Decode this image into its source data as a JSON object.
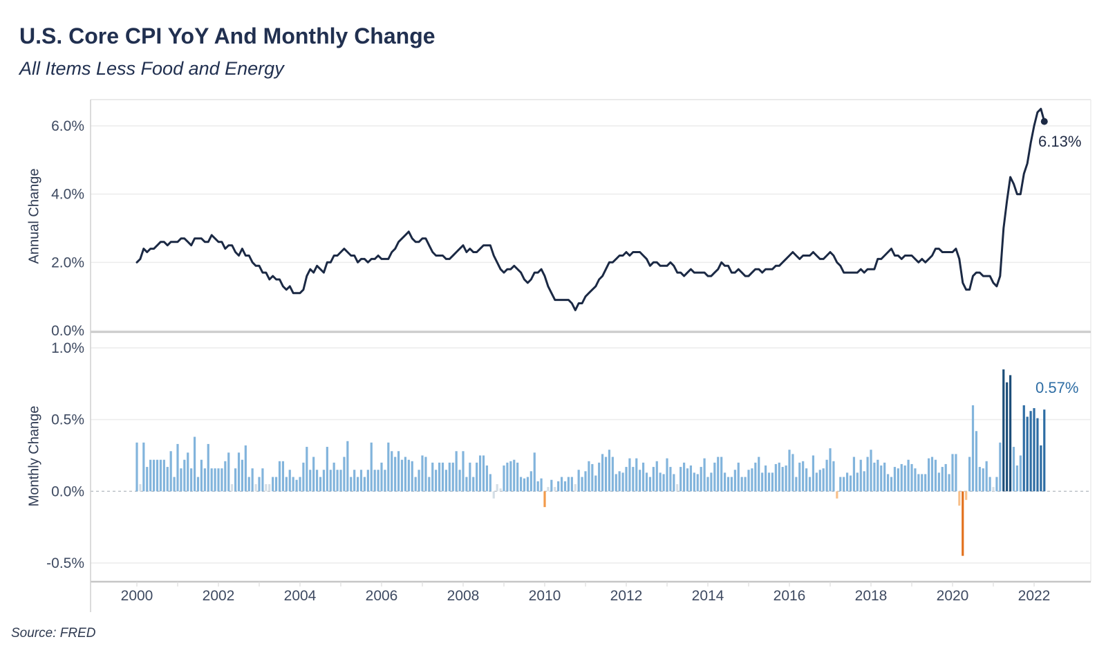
{
  "title": "U.S. Core CPI YoY And Monthly Change",
  "subtitle": "All Items Less Food and Energy",
  "source": "Source: FRED",
  "annotations": {
    "annual_latest": "6.13%",
    "monthly_latest": "0.57%"
  },
  "panels": {
    "annual": {
      "axis_title": "Annual Change",
      "ticks": [
        {
          "value": 6.0,
          "label": "6.0%"
        },
        {
          "value": 4.0,
          "label": "4.0%"
        },
        {
          "value": 2.0,
          "label": "2.0%"
        },
        {
          "value": 0.0,
          "label": "0.0%"
        }
      ],
      "ylim": [
        0.0,
        6.6
      ],
      "grid": true
    },
    "monthly": {
      "axis_title": "Monthly Change",
      "ticks": [
        {
          "value": 1.0,
          "label": "1.0%"
        },
        {
          "value": 0.5,
          "label": "0.5%"
        },
        {
          "value": 0.0,
          "label": "0.0%"
        },
        {
          "value": -0.5,
          "label": "-0.5%"
        }
      ],
      "ylim": [
        -0.63,
        1.05
      ],
      "grid": true,
      "zero_line_dashed": true
    }
  },
  "x_axis": {
    "tick_labels": [
      "2000",
      "2002",
      "2004",
      "2006",
      "2008",
      "2010",
      "2012",
      "2014",
      "2016",
      "2018",
      "2020",
      "2022"
    ],
    "tick_years": [
      2000,
      2002,
      2004,
      2006,
      2008,
      2010,
      2012,
      2014,
      2016,
      2018,
      2020,
      2022
    ],
    "minor_tick_every_year": true,
    "range_months": [
      "2000-01",
      "2022-04"
    ]
  },
  "colors": {
    "line": "#1b2944",
    "bar_default": "#82b4dc",
    "bar_pale": "#d4dee6",
    "bar_dark": "#1d4e79",
    "bar_medium": "#2e6da4",
    "bar_orange_dark": "#e2711d",
    "bar_orange_medium": "#f29a4a",
    "bar_orange_light": "#f8c08a",
    "gridline": "#ececec",
    "axis_line": "#c9c9c9",
    "zero_dash": "#b9bec4",
    "tick_text": "#3e4a61",
    "annotation_annual": "#1f2a44",
    "annotation_monthly": "#2e6da4"
  },
  "chart_data": [
    {
      "type": "line",
      "name": "Core CPI Year-over-Year % Change (Annual Change)",
      "panel": "annual",
      "unit": "percent",
      "x_start": "2000-01",
      "x_end": "2022-04",
      "end_marker": true,
      "end_value": 6.13,
      "values_by_year": {
        "2000": [
          2.0,
          2.1,
          2.4,
          2.3,
          2.4,
          2.4,
          2.5,
          2.6,
          2.6,
          2.5,
          2.6,
          2.6
        ],
        "2001": [
          2.6,
          2.7,
          2.7,
          2.6,
          2.5,
          2.7,
          2.7,
          2.7,
          2.6,
          2.6,
          2.8,
          2.7
        ],
        "2002": [
          2.6,
          2.6,
          2.4,
          2.5,
          2.5,
          2.3,
          2.2,
          2.4,
          2.2,
          2.2,
          2.0,
          1.9
        ],
        "2003": [
          1.9,
          1.7,
          1.7,
          1.5,
          1.6,
          1.5,
          1.5,
          1.3,
          1.2,
          1.3,
          1.1,
          1.1
        ],
        "2004": [
          1.1,
          1.2,
          1.6,
          1.8,
          1.7,
          1.9,
          1.8,
          1.7,
          2.0,
          2.0,
          2.2,
          2.2
        ],
        "2005": [
          2.3,
          2.4,
          2.3,
          2.2,
          2.2,
          2.0,
          2.1,
          2.1,
          2.0,
          2.1,
          2.1,
          2.2
        ],
        "2006": [
          2.1,
          2.1,
          2.1,
          2.3,
          2.4,
          2.6,
          2.7,
          2.8,
          2.9,
          2.7,
          2.6,
          2.6
        ],
        "2007": [
          2.7,
          2.7,
          2.5,
          2.3,
          2.2,
          2.2,
          2.2,
          2.1,
          2.1,
          2.2,
          2.3,
          2.4
        ],
        "2008": [
          2.5,
          2.3,
          2.4,
          2.3,
          2.3,
          2.4,
          2.5,
          2.5,
          2.5,
          2.2,
          2.0,
          1.8
        ],
        "2009": [
          1.7,
          1.8,
          1.8,
          1.9,
          1.8,
          1.7,
          1.5,
          1.4,
          1.5,
          1.7,
          1.7,
          1.8
        ],
        "2010": [
          1.6,
          1.3,
          1.1,
          0.9,
          0.9,
          0.9,
          0.9,
          0.9,
          0.8,
          0.6,
          0.8,
          0.8
        ],
        "2011": [
          1.0,
          1.1,
          1.2,
          1.3,
          1.5,
          1.6,
          1.8,
          2.0,
          2.0,
          2.1,
          2.2,
          2.2
        ],
        "2012": [
          2.3,
          2.2,
          2.3,
          2.3,
          2.3,
          2.2,
          2.1,
          1.9,
          2.0,
          2.0,
          1.9,
          1.9
        ],
        "2013": [
          1.9,
          2.0,
          1.9,
          1.7,
          1.7,
          1.6,
          1.7,
          1.8,
          1.7,
          1.7,
          1.7,
          1.7
        ],
        "2014": [
          1.6,
          1.6,
          1.7,
          1.8,
          2.0,
          1.9,
          1.9,
          1.7,
          1.7,
          1.8,
          1.7,
          1.6
        ],
        "2015": [
          1.6,
          1.7,
          1.8,
          1.8,
          1.7,
          1.8,
          1.8,
          1.8,
          1.9,
          1.9,
          2.0,
          2.1
        ],
        "2016": [
          2.2,
          2.3,
          2.2,
          2.1,
          2.2,
          2.2,
          2.2,
          2.3,
          2.2,
          2.1,
          2.1,
          2.2
        ],
        "2017": [
          2.3,
          2.2,
          2.0,
          1.9,
          1.7,
          1.7,
          1.7,
          1.7,
          1.7,
          1.8,
          1.7,
          1.8
        ],
        "2018": [
          1.8,
          1.8,
          2.1,
          2.1,
          2.2,
          2.3,
          2.4,
          2.2,
          2.2,
          2.1,
          2.2,
          2.2
        ],
        "2019": [
          2.2,
          2.1,
          2.0,
          2.1,
          2.0,
          2.1,
          2.2,
          2.4,
          2.4,
          2.3,
          2.3,
          2.3
        ],
        "2020": [
          2.3,
          2.4,
          2.1,
          1.4,
          1.2,
          1.2,
          1.6,
          1.7,
          1.7,
          1.6,
          1.6,
          1.6
        ],
        "2021": [
          1.4,
          1.3,
          1.6,
          3.0,
          3.8,
          4.5,
          4.3,
          4.0,
          4.0,
          4.6,
          4.9,
          5.5
        ],
        "2022": [
          6.0,
          6.4,
          6.5,
          6.13
        ]
      }
    },
    {
      "type": "bar",
      "name": "Core CPI Month-over-Month % Change (Monthly Change)",
      "panel": "monthly",
      "unit": "percent",
      "x_start": "2000-01",
      "x_end": "2022-04",
      "end_value": 0.57,
      "values_by_year": {
        "2000": [
          0.34,
          0.05,
          0.34,
          0.17,
          0.22,
          0.22,
          0.22,
          0.22,
          0.22,
          0.17,
          0.28,
          0.1
        ],
        "2001": [
          0.33,
          0.16,
          0.22,
          0.27,
          0.16,
          0.38,
          0.1,
          0.22,
          0.16,
          0.33,
          0.16,
          0.16
        ],
        "2002": [
          0.16,
          0.16,
          0.21,
          0.27,
          0.05,
          0.16,
          0.27,
          0.22,
          0.32,
          0.1,
          0.16,
          0.05
        ],
        "2003": [
          0.1,
          0.16,
          0.05,
          0.05,
          0.1,
          0.1,
          0.21,
          0.21,
          0.1,
          0.15,
          0.1,
          0.08
        ],
        "2004": [
          0.1,
          0.2,
          0.31,
          0.15,
          0.24,
          0.15,
          0.1,
          0.15,
          0.31,
          0.15,
          0.2,
          0.15
        ],
        "2005": [
          0.15,
          0.24,
          0.35,
          0.1,
          0.15,
          0.1,
          0.15,
          0.1,
          0.15,
          0.34,
          0.15,
          0.15
        ],
        "2006": [
          0.2,
          0.15,
          0.34,
          0.28,
          0.24,
          0.28,
          0.22,
          0.24,
          0.22,
          0.21,
          0.1,
          0.15
        ],
        "2007": [
          0.25,
          0.24,
          0.1,
          0.2,
          0.15,
          0.2,
          0.2,
          0.15,
          0.2,
          0.2,
          0.28,
          0.15
        ],
        "2008": [
          0.28,
          0.1,
          0.2,
          0.1,
          0.2,
          0.25,
          0.25,
          0.18,
          0.12,
          -0.05,
          0.05,
          0.02
        ],
        "2009": [
          0.18,
          0.2,
          0.21,
          0.22,
          0.2,
          0.1,
          0.09,
          0.1,
          0.14,
          0.27,
          0.07,
          0.09
        ],
        "2010": [
          -0.11,
          0.03,
          0.08,
          0.03,
          0.07,
          0.1,
          0.07,
          0.1,
          0.1,
          0.05,
          0.15,
          0.1
        ],
        "2011": [
          0.14,
          0.21,
          0.19,
          0.11,
          0.2,
          0.26,
          0.24,
          0.29,
          0.24,
          0.12,
          0.14,
          0.13
        ],
        "2012": [
          0.17,
          0.23,
          0.17,
          0.23,
          0.15,
          0.2,
          0.13,
          0.1,
          0.17,
          0.21,
          0.13,
          0.12
        ],
        "2013": [
          0.23,
          0.17,
          0.12,
          0.05,
          0.17,
          0.2,
          0.16,
          0.18,
          0.13,
          0.12,
          0.17,
          0.23
        ],
        "2014": [
          0.1,
          0.13,
          0.2,
          0.24,
          0.24,
          0.13,
          0.1,
          0.1,
          0.15,
          0.2,
          0.1,
          0.1
        ],
        "2015": [
          0.15,
          0.16,
          0.2,
          0.24,
          0.13,
          0.18,
          0.13,
          0.13,
          0.19,
          0.2,
          0.17,
          0.18
        ],
        "2016": [
          0.29,
          0.26,
          0.1,
          0.2,
          0.21,
          0.16,
          0.1,
          0.25,
          0.13,
          0.15,
          0.16,
          0.22
        ],
        "2017": [
          0.3,
          0.21,
          -0.05,
          0.1,
          0.1,
          0.13,
          0.11,
          0.24,
          0.13,
          0.22,
          0.14,
          0.24
        ],
        "2018": [
          0.29,
          0.2,
          0.22,
          0.18,
          0.2,
          0.12,
          0.1,
          0.17,
          0.16,
          0.19,
          0.18,
          0.22
        ],
        "2019": [
          0.19,
          0.16,
          0.12,
          0.12,
          0.12,
          0.23,
          0.24,
          0.22,
          0.13,
          0.17,
          0.19,
          0.12
        ],
        "2020": [
          0.26,
          0.26,
          -0.1,
          -0.45,
          -0.06,
          0.24,
          0.6,
          0.42,
          0.17,
          0.16,
          0.21,
          0.1
        ],
        "2021": [
          0.03,
          0.1,
          0.34,
          0.85,
          0.76,
          0.81,
          0.31,
          0.18,
          0.25,
          0.6,
          0.52,
          0.56
        ],
        "2022": [
          0.58,
          0.51,
          0.32,
          0.57
        ]
      },
      "highlights": {
        "dark": [
          "2021-04",
          "2021-05",
          "2021-06"
        ],
        "medium": [
          "2021-10",
          "2021-11",
          "2021-12",
          "2022-01",
          "2022-02",
          "2022-03",
          "2022-04"
        ],
        "orange_dark": [
          "2020-04"
        ],
        "orange_medium": [
          "2010-01"
        ],
        "orange_light": [
          "2020-03",
          "2020-05",
          "2017-03"
        ]
      }
    }
  ]
}
